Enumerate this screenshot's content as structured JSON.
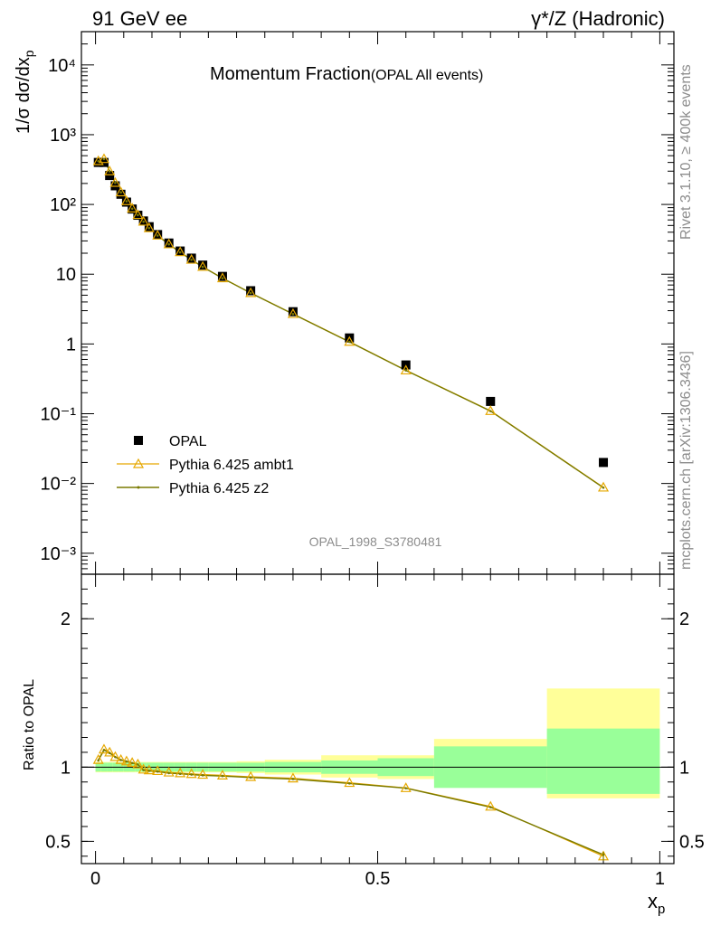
{
  "header": {
    "left": "91 GeV ee",
    "right": "γ*/Z (Hadronic)"
  },
  "side_labels": {
    "rivet": "Rivet 3.1.10, ≥ 400k events",
    "mcplots": "mcplots.cern.ch [arXiv:1306.3436]"
  },
  "analysis_tag": "OPAL_1998_S3780481",
  "colors": {
    "data": "#000000",
    "ambt1": "#e6a800",
    "z2": "#7a7a00",
    "band_inner": "#99ff99",
    "band_outer": "#ffff99"
  },
  "chart_data": [
    {
      "type": "scatter",
      "title": "Momentum Fraction",
      "title_suffix": "(OPAL All events)",
      "ylabel": "1/σ dσ/dx",
      "ylabel_sub": "p",
      "yscale": "log",
      "ylim": [
        0.0005,
        30000
      ],
      "xlim": [
        -0.025,
        1.025
      ],
      "ytick_labels": [
        "10⁻³",
        "10⁻²",
        "10⁻¹",
        "1",
        "10",
        "10²",
        "10³",
        "10⁴"
      ],
      "legend": {
        "placement": "middle-left",
        "entries": [
          "OPAL",
          "Pythia 6.425 ambt1",
          "Pythia 6.425 z2"
        ]
      },
      "series": [
        {
          "name": "OPAL",
          "x": [
            0.005,
            0.015,
            0.025,
            0.035,
            0.045,
            0.055,
            0.065,
            0.075,
            0.085,
            0.095,
            0.11,
            0.13,
            0.15,
            0.17,
            0.19,
            0.225,
            0.275,
            0.35,
            0.45,
            0.55,
            0.7,
            0.9
          ],
          "y": [
            400,
            400,
            260,
            185,
            140,
            108,
            86,
            70,
            58,
            48,
            37,
            28,
            21.5,
            17,
            13.5,
            9.3,
            5.8,
            2.9,
            1.22,
            0.5,
            0.15,
            0.02
          ]
        },
        {
          "name": "Pythia 6.425 ambt1",
          "x": [
            0.005,
            0.015,
            0.025,
            0.035,
            0.045,
            0.055,
            0.065,
            0.075,
            0.085,
            0.095,
            0.11,
            0.13,
            0.15,
            0.17,
            0.19,
            0.225,
            0.275,
            0.35,
            0.45,
            0.55,
            0.7,
            0.9
          ],
          "y": [
            420,
            450,
            300,
            205,
            150,
            112,
            88,
            71,
            57,
            46,
            36,
            27,
            20.8,
            16.2,
            12.8,
            8.8,
            5.4,
            2.7,
            1.08,
            0.42,
            0.11,
            0.0088
          ]
        },
        {
          "name": "Pythia 6.425 z2",
          "x": [
            0.005,
            0.015,
            0.025,
            0.035,
            0.045,
            0.055,
            0.065,
            0.075,
            0.085,
            0.095,
            0.11,
            0.13,
            0.15,
            0.17,
            0.19,
            0.225,
            0.275,
            0.35,
            0.45,
            0.55,
            0.7,
            0.9
          ],
          "y": [
            418,
            448,
            299,
            204,
            149,
            111,
            87,
            70.5,
            56.5,
            45.8,
            35.8,
            26.8,
            20.6,
            16.1,
            12.7,
            8.75,
            5.38,
            2.68,
            1.07,
            0.418,
            0.109,
            0.0087
          ]
        }
      ]
    },
    {
      "type": "line",
      "ylabel": "Ratio to OPAL",
      "xlabel": "x",
      "xlabel_sub": "p",
      "ylim": [
        0.35,
        2.3
      ],
      "xlim": [
        -0.025,
        1.025
      ],
      "yticks": [
        0.5,
        1,
        2
      ],
      "ytick_labels": [
        "0.5",
        "1",
        "2"
      ],
      "xticks": [
        0,
        0.5,
        1
      ],
      "xtick_labels": [
        "0",
        "0.5",
        "1"
      ],
      "bands": {
        "bin_edges": [
          0.0,
          0.01,
          0.02,
          0.03,
          0.04,
          0.05,
          0.06,
          0.07,
          0.08,
          0.09,
          0.1,
          0.12,
          0.14,
          0.16,
          0.18,
          0.2,
          0.25,
          0.3,
          0.4,
          0.5,
          0.6,
          0.8,
          1.0
        ],
        "inner": [
          0.03,
          0.03,
          0.03,
          0.03,
          0.03,
          0.03,
          0.03,
          0.03,
          0.03,
          0.03,
          0.03,
          0.03,
          0.03,
          0.03,
          0.03,
          0.03,
          0.03,
          0.035,
          0.045,
          0.06,
          0.14,
          0.18
        ],
        "outer": [
          0.035,
          0.035,
          0.035,
          0.035,
          0.035,
          0.035,
          0.035,
          0.035,
          0.035,
          0.035,
          0.035,
          0.035,
          0.035,
          0.035,
          0.035,
          0.035,
          0.04,
          0.05,
          0.07,
          0.08,
          0.11,
          0.21
        ],
        "inner_hi": [
          0.03,
          0.03,
          0.03,
          0.03,
          0.03,
          0.03,
          0.03,
          0.03,
          0.03,
          0.03,
          0.03,
          0.03,
          0.03,
          0.03,
          0.03,
          0.03,
          0.03,
          0.035,
          0.045,
          0.06,
          0.14,
          0.26
        ],
        "outer_hi": [
          0.035,
          0.035,
          0.035,
          0.035,
          0.035,
          0.035,
          0.035,
          0.035,
          0.035,
          0.035,
          0.035,
          0.035,
          0.035,
          0.035,
          0.035,
          0.035,
          0.04,
          0.05,
          0.08,
          0.08,
          0.19,
          0.53
        ]
      },
      "series": [
        {
          "name": "Pythia 6.425 ambt1",
          "x": [
            0.005,
            0.015,
            0.025,
            0.035,
            0.045,
            0.055,
            0.065,
            0.075,
            0.085,
            0.095,
            0.11,
            0.13,
            0.15,
            0.17,
            0.19,
            0.225,
            0.275,
            0.35,
            0.45,
            0.55,
            0.7,
            0.9
          ],
          "y": [
            1.05,
            1.12,
            1.1,
            1.07,
            1.05,
            1.04,
            1.03,
            1.02,
            0.985,
            0.98,
            0.975,
            0.965,
            0.96,
            0.955,
            0.95,
            0.945,
            0.935,
            0.925,
            0.895,
            0.86,
            0.735,
            0.4
          ]
        },
        {
          "name": "Pythia 6.425 z2",
          "x": [
            0.005,
            0.015,
            0.025,
            0.035,
            0.045,
            0.055,
            0.065,
            0.075,
            0.085,
            0.095,
            0.11,
            0.13,
            0.15,
            0.17,
            0.19,
            0.225,
            0.275,
            0.35,
            0.45,
            0.55,
            0.7,
            0.9
          ],
          "y": [
            1.045,
            1.115,
            1.095,
            1.068,
            1.048,
            1.038,
            1.028,
            1.018,
            0.98,
            0.975,
            0.97,
            0.96,
            0.955,
            0.95,
            0.945,
            0.94,
            0.93,
            0.92,
            0.89,
            0.858,
            0.73,
            0.41
          ]
        }
      ]
    }
  ]
}
